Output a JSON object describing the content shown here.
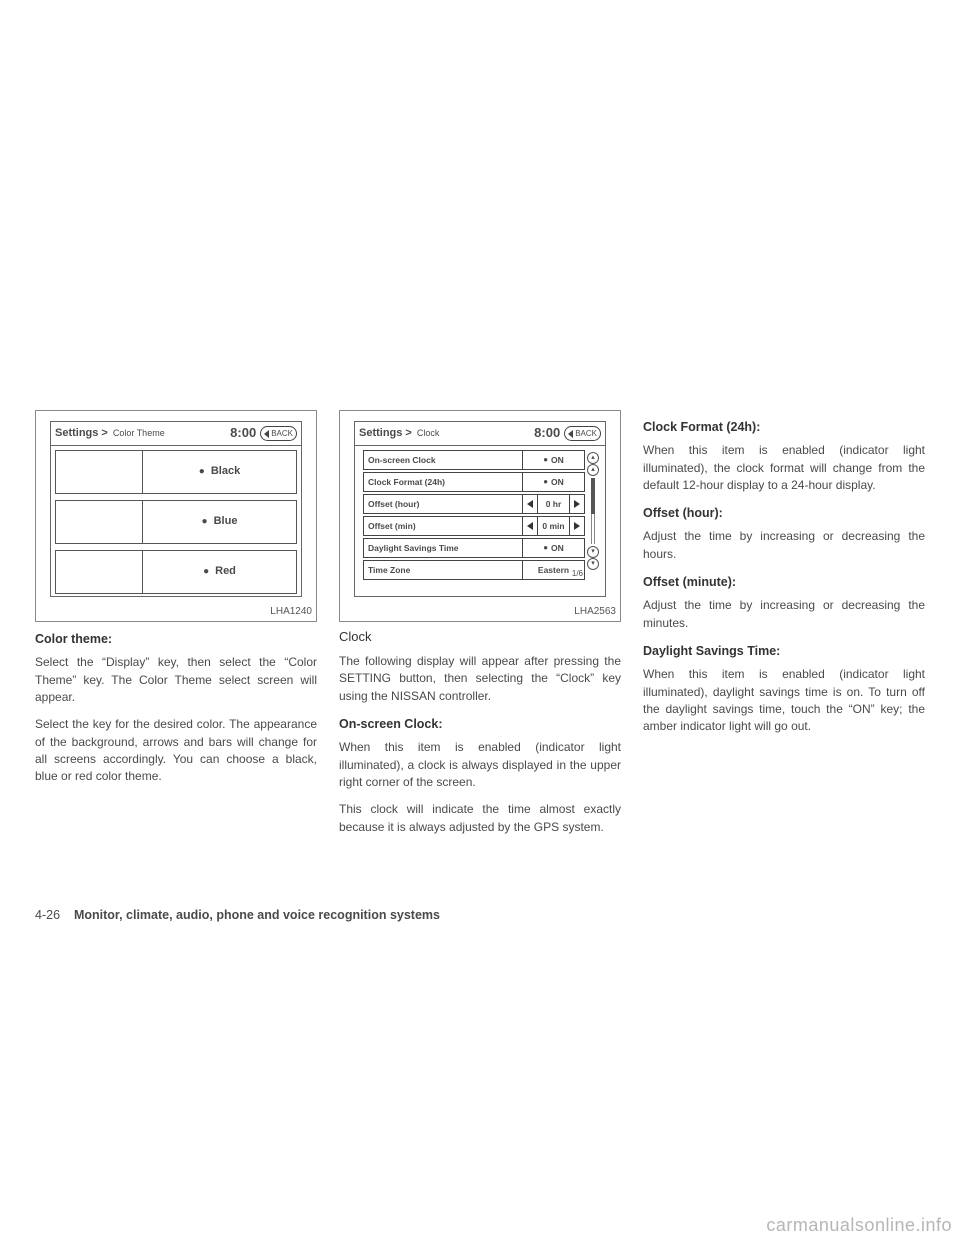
{
  "figure1": {
    "label": "LHA1240",
    "breadcrumb_root": "Settings",
    "breadcrumb_sub": "Color Theme",
    "clock": "8:00",
    "back": "BACK",
    "items": [
      {
        "label": "Black"
      },
      {
        "label": "Blue"
      },
      {
        "label": "Red"
      }
    ]
  },
  "figure2": {
    "label": "LHA2563",
    "breadcrumb_root": "Settings",
    "breadcrumb_sub": "Clock",
    "clock": "8:00",
    "back": "BACK",
    "page_indicator": "1/6",
    "rows": {
      "onscreen": {
        "label": "On-screen Clock",
        "value": "ON"
      },
      "format": {
        "label": "Clock Format (24h)",
        "value": "ON"
      },
      "offhr": {
        "label": "Offset (hour)",
        "value": "0 hr"
      },
      "offmin": {
        "label": "Offset (min)",
        "value": "0 min"
      },
      "dst": {
        "label": "Daylight Savings Time",
        "value": "ON"
      },
      "tz": {
        "label": "Time Zone",
        "value": "Eastern"
      }
    }
  },
  "col1": {
    "h": "Color theme:",
    "p1": "Select the “Display” key, then select the “Color Theme” key. The Color Theme select screen will appear.",
    "p2": "Select the key for the desired color. The appearance of the background, arrows and bars will change for all screens accordingly. You can choose a black, blue or red color theme."
  },
  "col2": {
    "h": "Clock",
    "p1": "The following display will appear after pressing the SETTING button, then selecting the “Clock” key using the NISSAN controller.",
    "sub1": "On-screen Clock:",
    "p2": "When this item is enabled (indicator light illuminated), a clock is always displayed in the upper right corner of the screen.",
    "p3": "This clock will indicate the time almost exactly because it is always adjusted by the GPS system."
  },
  "col3": {
    "h1": "Clock Format (24h):",
    "p1": "When this item is enabled (indicator light illuminated), the clock format will change from the default 12-hour display to a 24-hour display.",
    "h2": "Offset (hour):",
    "p2": "Adjust the time by increasing or decreasing the hours.",
    "h3": "Offset (minute):",
    "p3": "Adjust the time by increasing or decreasing the minutes.",
    "h4": "Daylight Savings Time:",
    "p4": "When this item is enabled (indicator light illuminated), daylight savings time is on. To turn off the daylight savings time, touch the “ON” key; the amber indicator light will go out."
  },
  "footer": {
    "page": "4-26",
    "section": "Monitor, climate, audio, phone and voice recognition systems"
  },
  "watermark": "carmanualsonline.info"
}
